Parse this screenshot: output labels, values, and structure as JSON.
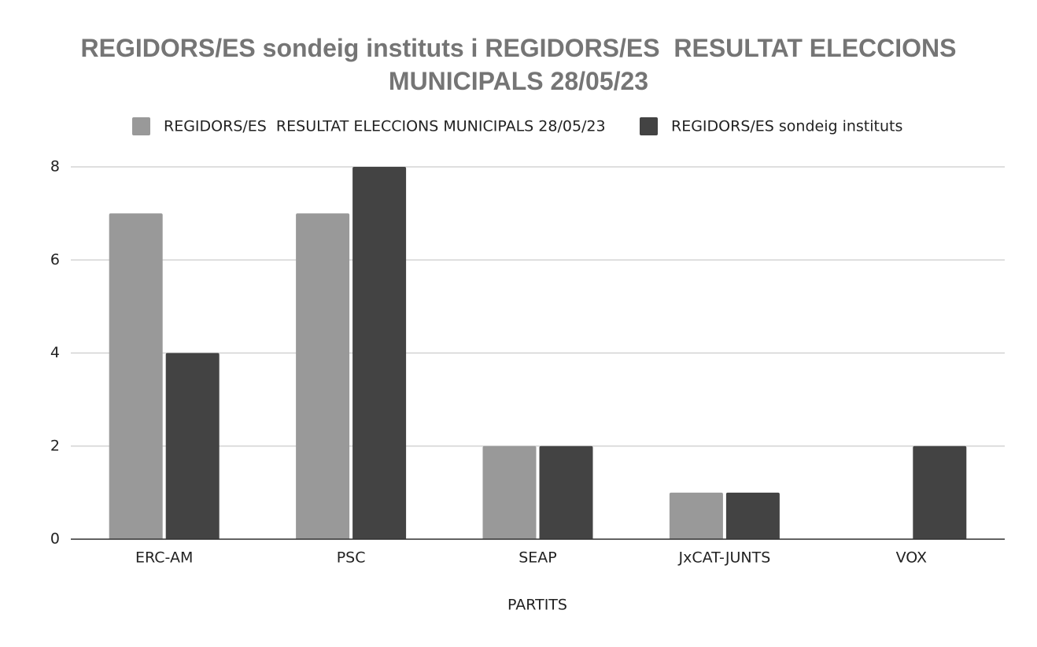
{
  "chart_data": {
    "type": "bar",
    "title": "REGIDORS/ES sondeig instituts i REGIDORS/ES  RESULTAT ELECCIONS MUNICIPALS 28/05/23",
    "x_label": "PARTITS",
    "categories": [
      "ERC-AM",
      "PSC",
      "SEAP",
      "JxCAT-JUNTS",
      "VOX"
    ],
    "series": [
      {
        "name": "REGIDORS/ES  RESULTAT ELECCIONS MUNICIPALS 28/05/23",
        "color": "#999999",
        "values": [
          7,
          7,
          2,
          1,
          0
        ]
      },
      {
        "name": "REGIDORS/ES sondeig instituts",
        "color": "#434343",
        "values": [
          4,
          8,
          2,
          1,
          2
        ]
      }
    ],
    "ylim": [
      0,
      8
    ],
    "yticks": [
      0,
      2,
      4,
      6,
      8
    ],
    "grid": true,
    "legend": "top"
  }
}
